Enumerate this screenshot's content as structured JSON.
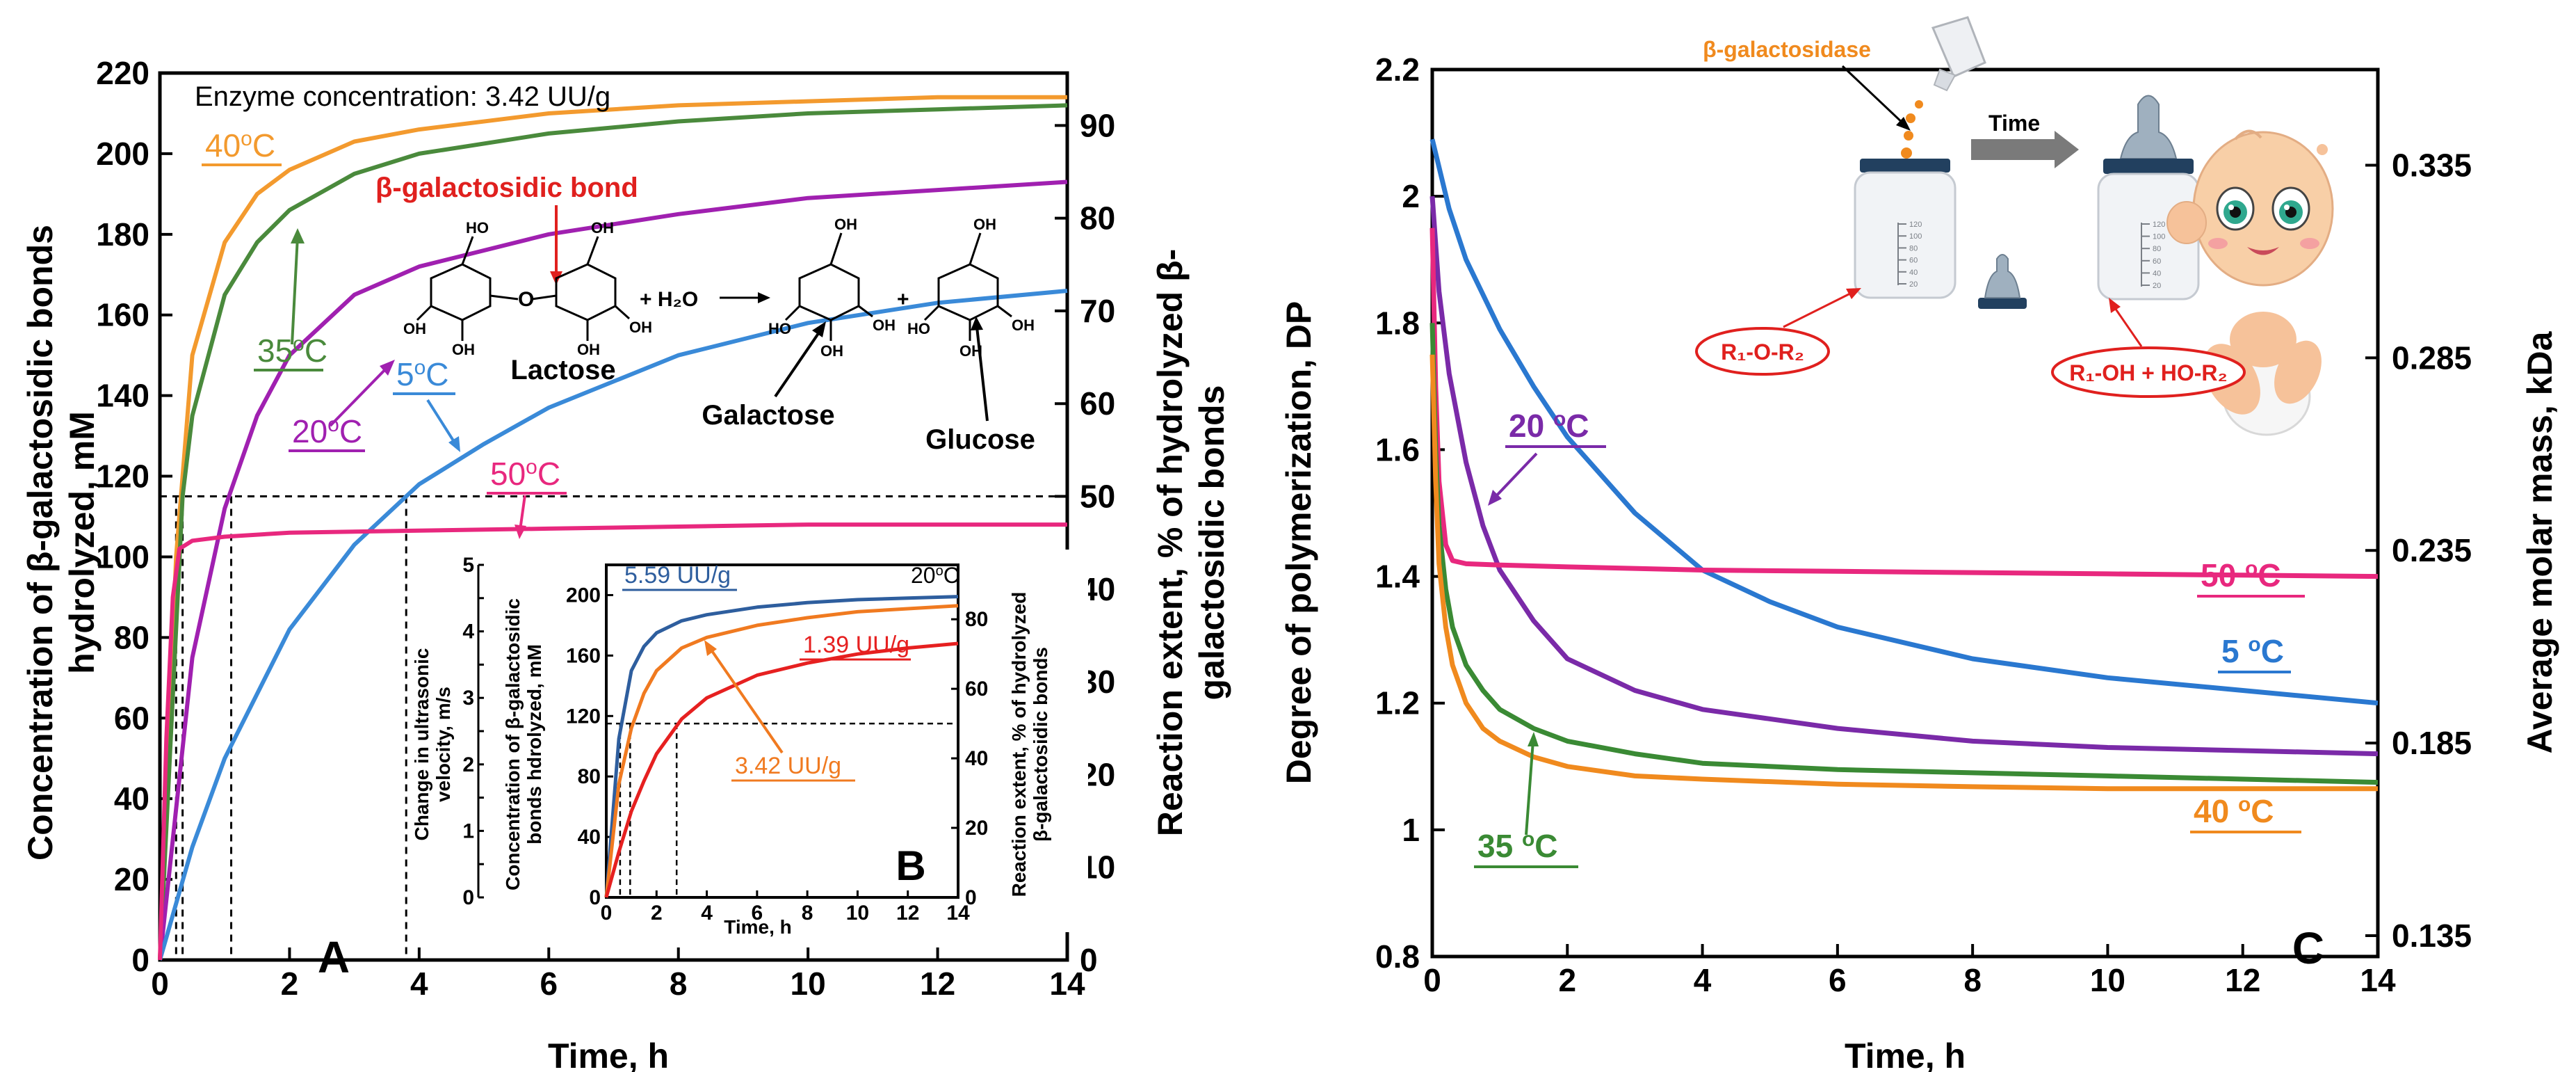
{
  "chart_data": [
    {
      "panel": "A",
      "type": "line",
      "annotation": "Enzyme concentration: 3.42 UU/g",
      "xlabel": "Time, h",
      "ylabel": [
        "Concentration of β-galactosidic bonds",
        "hydrolyzed, mM"
      ],
      "y2label": [
        "Reaction extent, % of hydrolyzed β-",
        "galactosidic bonds"
      ],
      "xlim": [
        0,
        14
      ],
      "ylim": [
        0,
        220
      ],
      "y2lim": [
        0,
        95.65
      ],
      "xticks": [
        "0",
        "2",
        "4",
        "6",
        "8",
        "10",
        "12",
        "14"
      ],
      "yticks": [
        "0",
        "20",
        "40",
        "60",
        "80",
        "100",
        "120",
        "140",
        "160",
        "180",
        "200",
        "220"
      ],
      "y2ticks": [
        "0",
        "10",
        "20",
        "30",
        "40",
        "50",
        "60",
        "70",
        "80",
        "90"
      ],
      "half_level": 115,
      "half_times": [
        0.25,
        0.35,
        1.1,
        3.8
      ],
      "series": [
        {
          "name": "40oC",
          "label_main": "40",
          "label_sup": "o",
          "label_end": "C",
          "color": "#f39a2e",
          "x": [
            0,
            0.25,
            0.5,
            1,
            1.5,
            2,
            3,
            4,
            6,
            8,
            10,
            12,
            14
          ],
          "y": [
            0,
            100,
            150,
            178,
            190,
            196,
            203,
            206,
            210,
            212,
            213,
            214,
            214
          ]
        },
        {
          "name": "35oC",
          "label_main": "35",
          "label_sup": "o",
          "label_end": "C",
          "color": "#4a8a3c",
          "x": [
            0,
            0.35,
            0.5,
            1,
            1.5,
            2,
            3,
            4,
            6,
            8,
            10,
            12,
            14
          ],
          "y": [
            0,
            115,
            135,
            165,
            178,
            186,
            195,
            200,
            205,
            208,
            210,
            211,
            212
          ]
        },
        {
          "name": "20oC",
          "label_main": "20",
          "label_sup": "o",
          "label_end": "C",
          "color": "#a020b0",
          "x": [
            0,
            0.5,
            1,
            1.5,
            2,
            3,
            4,
            6,
            8,
            10,
            12,
            14
          ],
          "y": [
            0,
            75,
            112,
            135,
            150,
            165,
            172,
            180,
            185,
            189,
            191,
            193
          ]
        },
        {
          "name": "5oC",
          "label_main": "5",
          "label_sup": "o",
          "label_end": "C",
          "color": "#3a8ad8",
          "x": [
            0,
            0.5,
            1,
            2,
            3,
            4,
            5,
            6,
            8,
            10,
            12,
            14
          ],
          "y": [
            0,
            28,
            50,
            82,
            103,
            118,
            128,
            137,
            150,
            158,
            163,
            166
          ]
        },
        {
          "name": "50oC",
          "label_main": "50",
          "label_sup": "o",
          "label_end": "C",
          "color": "#e8287e",
          "x": [
            0,
            0.1,
            0.2,
            0.3,
            0.5,
            1,
            2,
            4,
            6,
            8,
            10,
            12,
            14
          ],
          "y": [
            0,
            55,
            90,
            102,
            104,
            105,
            106,
            106.5,
            107,
            107.5,
            108,
            108,
            108
          ]
        }
      ],
      "reaction": {
        "bond_label": "β-galactosidic bond",
        "substrate": "Lactose",
        "water": "+ H₂O",
        "product1": "Galactose",
        "product2": "Glucose",
        "plus": "+"
      },
      "letter": "A"
    },
    {
      "panel": "B",
      "type": "line",
      "xlabel": "Time, h",
      "ylabel_outer": [
        "Change in ultrasonic",
        "velocity, m/s"
      ],
      "ylabel_inner": [
        "Concentration of β-galactosidic",
        "bonds hdrolyzed, mM"
      ],
      "y2label": [
        "Reaction extent, % of hydrolyzed",
        "β-galactosidic bonds"
      ],
      "temperature_main": "20",
      "temperature_sup": "o",
      "temperature_end": "C",
      "xlim": [
        0,
        14
      ],
      "ylim": [
        0,
        220
      ],
      "outer_ylim": [
        0,
        5
      ],
      "y2lim": [
        0,
        95.65
      ],
      "xticks": [
        "0",
        "2",
        "4",
        "6",
        "8",
        "10",
        "12",
        "14"
      ],
      "yticks": [
        "0",
        "40",
        "80",
        "120",
        "160",
        "200"
      ],
      "outer_yticks": [
        "0",
        "0.5",
        "1",
        "1.5",
        "2",
        "2.5",
        "3",
        "3.5",
        "4",
        "4.5",
        "5"
      ],
      "y2ticks": [
        "0",
        "20",
        "40",
        "60",
        "80"
      ],
      "half_level": 115,
      "half_times": [
        0.55,
        0.95,
        2.8
      ],
      "series": [
        {
          "name": "5.59 UU/g",
          "color": "#2e5e9e",
          "x": [
            0,
            0.5,
            1,
            1.5,
            2,
            3,
            4,
            6,
            8,
            10,
            12,
            14
          ],
          "y": [
            0,
            105,
            150,
            166,
            175,
            183,
            187,
            192,
            195,
            197,
            198,
            199
          ]
        },
        {
          "name": "3.42 UU/g",
          "color": "#f07a20",
          "x": [
            0,
            0.5,
            1,
            1.5,
            2,
            3,
            4,
            6,
            8,
            10,
            12,
            14
          ],
          "y": [
            0,
            75,
            112,
            135,
            150,
            165,
            172,
            180,
            185,
            189,
            191,
            193
          ]
        },
        {
          "name": "1.39 UU/g",
          "color": "#e62020",
          "x": [
            0,
            0.5,
            1,
            1.5,
            2,
            3,
            4,
            6,
            8,
            10,
            12,
            14
          ],
          "y": [
            0,
            30,
            57,
            77,
            95,
            118,
            132,
            147,
            155,
            161,
            165,
            168
          ]
        }
      ],
      "letter": "B"
    },
    {
      "panel": "C",
      "type": "line",
      "xlabel": "Time, h",
      "ylabel": "Degree of polymerization, DP",
      "y2label": "Average molar mass, kDa",
      "xlim": [
        0,
        14
      ],
      "ylim": [
        0.8,
        2.2
      ],
      "xticks": [
        "0",
        "2",
        "4",
        "6",
        "8",
        "10",
        "12",
        "14"
      ],
      "yticks": [
        "0.8",
        "1",
        "1.2",
        "1.4",
        "1.6",
        "1.8",
        "2",
        "2.2"
      ],
      "y2ticks": [
        "0.135",
        "0.185",
        "0.235",
        "0.285",
        "0.335"
      ],
      "y2tick_dp": [
        0.833,
        1.137,
        1.441,
        1.745,
        2.049
      ],
      "series": [
        {
          "name": "5 oC",
          "label_main": "5 ",
          "label_sup": "o",
          "label_end": "C",
          "color": "#2a78d0",
          "x": [
            0,
            0.25,
            0.5,
            1,
            1.5,
            2,
            3,
            4,
            5,
            6,
            8,
            10,
            12,
            14
          ],
          "y": [
            2.09,
            1.98,
            1.9,
            1.79,
            1.7,
            1.62,
            1.5,
            1.41,
            1.36,
            1.32,
            1.27,
            1.24,
            1.22,
            1.2
          ]
        },
        {
          "name": "20 oC",
          "label_main": "20 ",
          "label_sup": "o",
          "label_end": "C",
          "color": "#7a2aa8",
          "x": [
            0,
            0.1,
            0.25,
            0.5,
            0.75,
            1,
            1.5,
            2,
            3,
            4,
            6,
            8,
            10,
            12,
            14
          ],
          "y": [
            2.0,
            1.85,
            1.72,
            1.58,
            1.48,
            1.41,
            1.33,
            1.27,
            1.22,
            1.19,
            1.16,
            1.14,
            1.13,
            1.125,
            1.12
          ]
        },
        {
          "name": "50 oC",
          "label_main": "50 ",
          "label_sup": "o",
          "label_end": "C",
          "color": "#e8287e",
          "x": [
            0,
            0.05,
            0.1,
            0.2,
            0.3,
            0.5,
            1,
            2,
            4,
            6,
            8,
            10,
            12,
            14
          ],
          "y": [
            1.95,
            1.7,
            1.55,
            1.45,
            1.425,
            1.42,
            1.418,
            1.415,
            1.41,
            1.408,
            1.406,
            1.404,
            1.402,
            1.4
          ]
        },
        {
          "name": "35 oC",
          "label_main": "35 ",
          "label_sup": "o",
          "label_end": "C",
          "color": "#3a8a34",
          "x": [
            0,
            0.05,
            0.1,
            0.2,
            0.3,
            0.5,
            0.75,
            1,
            1.5,
            2,
            3,
            4,
            6,
            8,
            10,
            12,
            14
          ],
          "y": [
            1.8,
            1.6,
            1.48,
            1.38,
            1.32,
            1.26,
            1.22,
            1.19,
            1.16,
            1.14,
            1.12,
            1.105,
            1.095,
            1.09,
            1.085,
            1.08,
            1.075
          ]
        },
        {
          "name": "40 oC",
          "label_main": "40 ",
          "label_sup": "o",
          "label_end": "C",
          "color": "#f08a1e",
          "x": [
            0,
            0.05,
            0.1,
            0.2,
            0.3,
            0.5,
            0.75,
            1,
            1.5,
            2,
            3,
            4,
            6,
            8,
            10,
            12,
            14
          ],
          "y": [
            1.75,
            1.55,
            1.42,
            1.32,
            1.26,
            1.2,
            1.16,
            1.14,
            1.115,
            1.1,
            1.085,
            1.08,
            1.072,
            1.068,
            1.065,
            1.065,
            1.065
          ]
        }
      ],
      "cartoon": {
        "enzyme": "β-galactosidase",
        "time": "Time",
        "substrate_formula": "R₁-O-R₂",
        "product_formula": "R₁-OH + HO-R₂",
        "bottle_ticks": [
          "120",
          "100",
          "80",
          "60",
          "40",
          "20"
        ]
      },
      "letter": "C"
    }
  ]
}
